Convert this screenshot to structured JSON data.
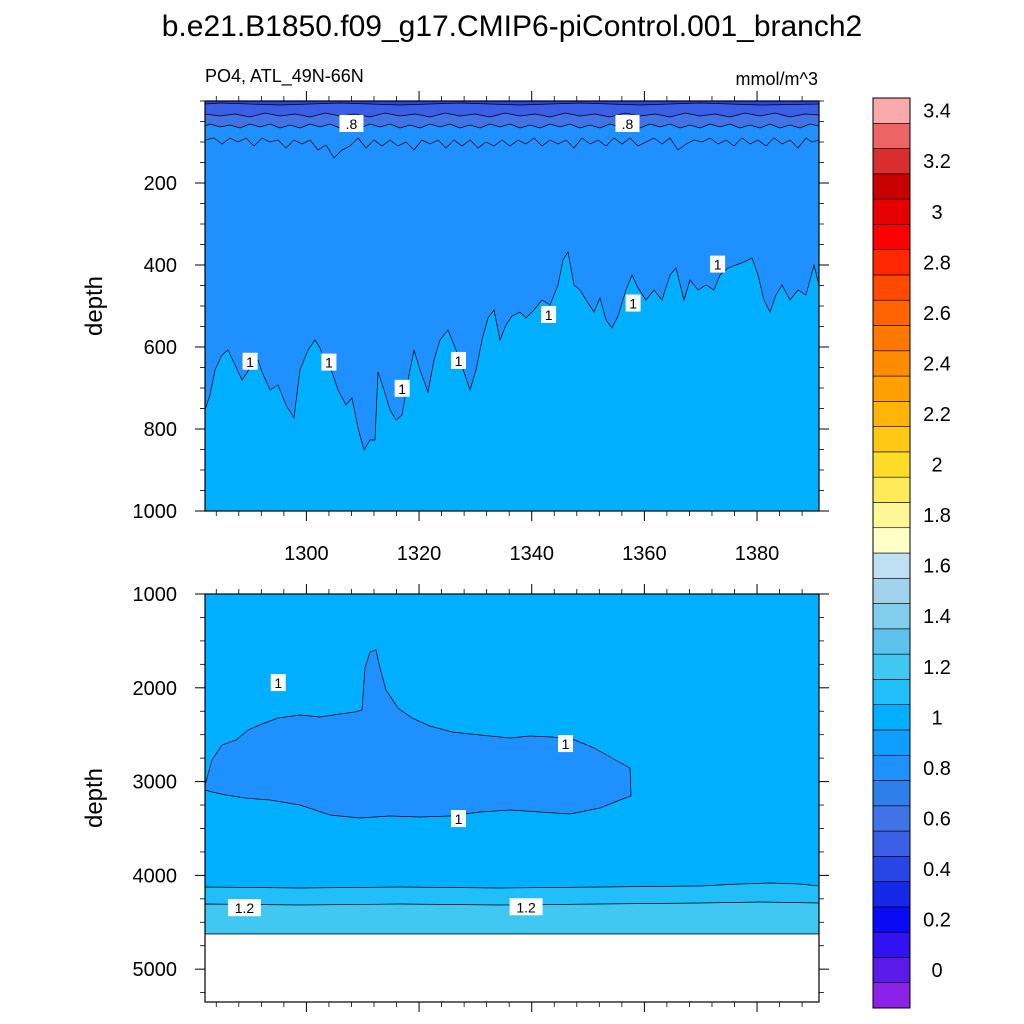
{
  "title": "b.e21.B1850.f09_g17.CMIP6-piControl.001_branch2",
  "subtitle_left": "PO4, ATL_49N-66N",
  "subtitle_right": "mmol/m^3",
  "chart_data": {
    "type": "contour",
    "variable": "PO4",
    "region": "ATL_49N-66N",
    "units": "mmol/m^3",
    "colorbar": {
      "levels": [
        -0.1,
        0,
        0.1,
        0.2,
        0.3,
        0.4,
        0.5,
        0.6,
        0.7,
        0.8,
        0.9,
        1,
        1.1,
        1.2,
        1.3,
        1.4,
        1.5,
        1.6,
        1.7,
        1.8,
        1.9,
        2,
        2.1,
        2.2,
        2.3,
        2.4,
        2.5,
        2.6,
        2.7,
        2.8,
        2.9,
        3,
        3.1,
        3.2,
        3.3,
        3.4,
        3.5,
        3.6
      ],
      "colors": [
        "#8C21E8",
        "#5A1AE8",
        "#3212F0",
        "#0A0AF5",
        "#1428E6",
        "#2846E6",
        "#3A5EE6",
        "#3F73E6",
        "#2E7FEA",
        "#1E90FF",
        "#0FA0FF",
        "#00AFFF",
        "#22BEFA",
        "#40C8F2",
        "#5EC2EC",
        "#82CCEC",
        "#A0D2EC",
        "#BEE0F2",
        "#FFFFC8",
        "#FFF796",
        "#FFEB5A",
        "#FFDC28",
        "#FFC814",
        "#FFB40A",
        "#FFA000",
        "#FF8C00",
        "#FF7800",
        "#FF6400",
        "#FF4A00",
        "#FF2800",
        "#FF0000",
        "#E60000",
        "#C80000",
        "#D82E2E",
        "#EC6464",
        "#FAAAAA"
      ],
      "tick_labels": [
        "0",
        "0.2",
        "0.4",
        "0.6",
        "0.8",
        "1",
        "1.2",
        "1.4",
        "1.6",
        "1.8",
        "2",
        "2.2",
        "2.4",
        "2.6",
        "2.8",
        "3",
        "3.2",
        "3.4"
      ]
    },
    "panels": [
      {
        "name": "upper",
        "ylabel": "depth",
        "xlim": [
          1282,
          1391
        ],
        "ylim": [
          1000,
          0
        ],
        "x_ticks": [
          1300,
          1320,
          1340,
          1360,
          1380
        ],
        "y_ticks": [
          200,
          400,
          600,
          800,
          1000
        ],
        "x_tick_labels_shown": true,
        "contour_labels": [
          {
            "text": ".8",
            "x": 1308,
            "y": 56
          },
          {
            "text": ".8",
            "x": 1357,
            "y": 56
          },
          {
            "text": "1",
            "x": 1290,
            "y": 636
          },
          {
            "text": "1",
            "x": 1304,
            "y": 638
          },
          {
            "text": "1",
            "x": 1317,
            "y": 702
          },
          {
            "text": "1",
            "x": 1327,
            "y": 634
          },
          {
            "text": "1",
            "x": 1343,
            "y": 522
          },
          {
            "text": "1",
            "x": 1358,
            "y": 494
          },
          {
            "text": "1",
            "x": 1373,
            "y": 399
          }
        ]
      },
      {
        "name": "lower",
        "ylabel": "depth",
        "xlim": [
          1282,
          1391
        ],
        "ylim": [
          5350,
          1000
        ],
        "x_ticks": [
          1300,
          1320,
          1340,
          1360,
          1380
        ],
        "y_ticks": [
          1000,
          2000,
          3000,
          4000,
          5000
        ],
        "x_tick_labels_shown": false,
        "bottom_depth": 4630,
        "contour_labels": [
          {
            "text": "1",
            "x": 1295,
            "y": 1950
          },
          {
            "text": "1",
            "x": 1346,
            "y": 2600
          },
          {
            "text": "1",
            "x": 1327,
            "y": 3400
          },
          {
            "text": "1.2",
            "x": 1289,
            "y": 4350
          },
          {
            "text": "1.2",
            "x": 1339,
            "y": 4340
          }
        ]
      }
    ]
  }
}
